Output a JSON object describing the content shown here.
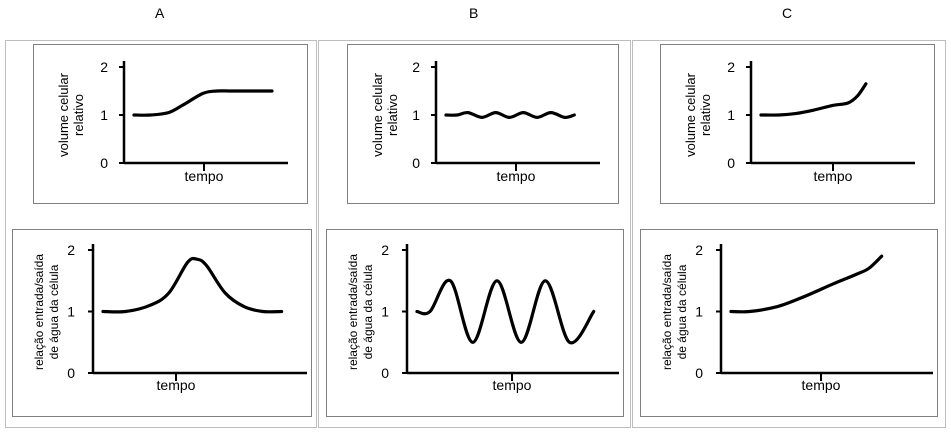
{
  "column_labels": [
    "A",
    "B",
    "C"
  ],
  "chart_data": [
    {
      "type": "line",
      "panel": "A-top",
      "column": "A",
      "ylabel": [
        "volume celular",
        "relativo"
      ],
      "xlabel": "tempo",
      "yticks": [
        "0",
        "1",
        "2"
      ],
      "ylim": [
        0,
        2
      ],
      "xlim": [
        0,
        10
      ],
      "x": [
        0,
        1.2,
        2.5,
        3.5,
        5,
        6,
        7,
        8,
        9,
        10
      ],
      "y": [
        1,
        1,
        1.05,
        1.2,
        1.45,
        1.5,
        1.5,
        1.5,
        1.5,
        1.5
      ]
    },
    {
      "type": "line",
      "panel": "A-bottom",
      "column": "A",
      "ylabel": [
        "relação entrada/saída",
        "de água da célula"
      ],
      "xlabel": "tempo",
      "yticks": [
        "0",
        "1",
        "2"
      ],
      "ylim": [
        0,
        2
      ],
      "xlim": [
        0,
        10
      ],
      "x": [
        0,
        1.2,
        2.5,
        3.5,
        4.5,
        5,
        5.5,
        6.5,
        7.5,
        8.5,
        9.5
      ],
      "y": [
        1,
        1,
        1.1,
        1.3,
        1.8,
        1.85,
        1.75,
        1.3,
        1.08,
        1,
        1
      ]
    },
    {
      "type": "line",
      "panel": "B-top",
      "column": "B",
      "ylabel": [
        "volume celular",
        "relativo"
      ],
      "xlabel": "tempo",
      "yticks": [
        "0",
        "1",
        "2"
      ],
      "ylim": [
        0,
        2
      ],
      "xlim": [
        0,
        10
      ],
      "x": [
        0,
        0.8,
        1.6,
        2.6,
        3.6,
        4.6,
        5.6,
        6.6,
        7.6,
        8.6,
        9.3
      ],
      "y": [
        1,
        1,
        1.05,
        0.95,
        1.05,
        0.95,
        1.05,
        0.95,
        1.05,
        0.95,
        1
      ]
    },
    {
      "type": "line",
      "panel": "B-bottom",
      "column": "B",
      "ylabel": [
        "relação entrada/saída",
        "de água da célula"
      ],
      "xlabel": "tempo",
      "yticks": [
        "0",
        "1",
        "2"
      ],
      "ylim": [
        0,
        2
      ],
      "xlim": [
        0,
        10
      ],
      "x": [
        0,
        0.7,
        1.8,
        3.0,
        4.3,
        5.6,
        6.9,
        8.2,
        9.5
      ],
      "y": [
        1,
        1,
        1.5,
        0.5,
        1.5,
        0.5,
        1.5,
        0.5,
        1
      ]
    },
    {
      "type": "line",
      "panel": "C-top",
      "column": "C",
      "ylabel": [
        "volume celular",
        "relativo"
      ],
      "xlabel": "tempo",
      "yticks": [
        "0",
        "1",
        "2"
      ],
      "ylim": [
        0,
        2
      ],
      "xlim": [
        0,
        10
      ],
      "x": [
        0,
        1.3,
        2.5,
        3.8,
        5.2,
        6.3,
        7.0,
        7.6
      ],
      "y": [
        1,
        1,
        1.03,
        1.1,
        1.2,
        1.25,
        1.4,
        1.65
      ]
    },
    {
      "type": "line",
      "panel": "C-bottom",
      "column": "C",
      "ylabel": [
        "relação entrada/saída",
        "de água da célula"
      ],
      "xlabel": "tempo",
      "yticks": [
        "0",
        "1",
        "2"
      ],
      "ylim": [
        0,
        2
      ],
      "xlim": [
        0,
        10
      ],
      "x": [
        0,
        1.0,
        2.5,
        4.0,
        5.5,
        6.7,
        7.4,
        8.1
      ],
      "y": [
        1,
        1,
        1.08,
        1.25,
        1.45,
        1.6,
        1.7,
        1.9
      ]
    }
  ]
}
